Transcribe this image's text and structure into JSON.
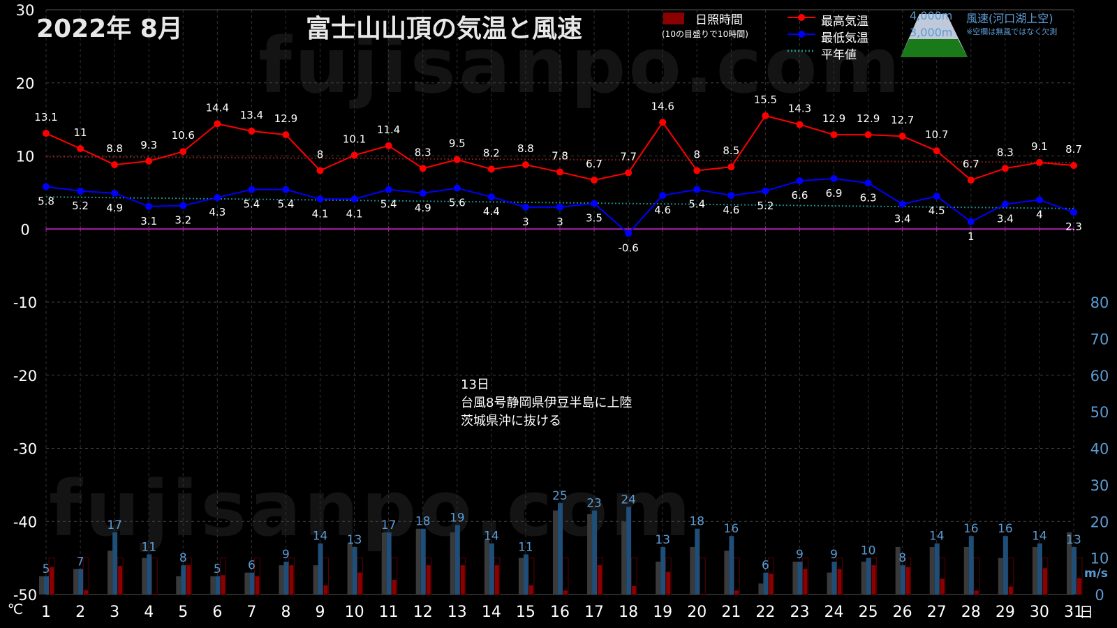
{
  "header": {
    "month_title": "2022年  8月",
    "main_title": "富士山山頂の気温と風速",
    "watermark": "fujisanpo.com"
  },
  "legend": {
    "sunshine_label": "日照時間",
    "sunshine_note": "(10の目盛りで10時間)",
    "max_label": "最高気温",
    "min_label": "最低気温",
    "normal_label": "平年値",
    "wind_4000": "4,000m",
    "wind_3000": "3,000m",
    "wind_label": "風速(河口湖上空)",
    "wind_note": "※空欄は無風ではなく欠測"
  },
  "annotation": {
    "line1": "13日",
    "line2": "台風8号静岡県伊豆半島に上陸",
    "line3": "茨城県沖に抜ける"
  },
  "colors": {
    "max": "#ff0000",
    "min": "#0000ff",
    "normal": "#1a8a8a",
    "zero_line": "#aa22aa",
    "sunshine": "#8b0000",
    "wind_4000": "#1f4e79",
    "wind_3000": "#3a3a3a",
    "wind_axis": "#5b9bd5"
  },
  "chart_data": {
    "type": "line",
    "days": [
      "1",
      "2",
      "3",
      "4",
      "5",
      "6",
      "7",
      "8",
      "9",
      "10",
      "11",
      "12",
      "13",
      "14",
      "15",
      "16",
      "17",
      "18",
      "19",
      "20",
      "21",
      "22",
      "23",
      "24",
      "25",
      "26",
      "27",
      "28",
      "29",
      "30",
      "31"
    ],
    "x_suffix": "日",
    "y_unit": "℃",
    "y2_unit": "m/s",
    "ylim": [
      -50,
      30
    ],
    "y_ticks": [
      -50,
      -40,
      -30,
      -20,
      -10,
      0,
      10,
      20,
      30
    ],
    "y2_ticks": [
      0,
      10,
      20,
      30,
      40,
      50,
      60,
      70,
      80
    ],
    "series": [
      {
        "name": "最高気温",
        "values": [
          13.1,
          11,
          8.8,
          9.3,
          10.6,
          14.4,
          13.4,
          12.9,
          8,
          10.1,
          11.4,
          8.3,
          9.5,
          8.2,
          8.8,
          7.8,
          6.7,
          7.7,
          14.6,
          8,
          8.5,
          15.5,
          14.3,
          12.9,
          12.9,
          12.7,
          10.7,
          6.7,
          8.3,
          9.1,
          8.7
        ]
      },
      {
        "name": "最低気温",
        "values": [
          5.8,
          5.2,
          4.9,
          3.1,
          3.2,
          4.3,
          5.4,
          5.4,
          4.1,
          4.1,
          5.4,
          4.9,
          5.6,
          4.4,
          3,
          3,
          3.5,
          -0.6,
          4.6,
          5.4,
          4.6,
          5.2,
          6.6,
          6.9,
          6.3,
          3.4,
          4.5,
          1,
          3.4,
          4,
          2.3
        ]
      }
    ],
    "normal_max": [
      9.9,
      9.1
    ],
    "normal_min": [
      4.4,
      2.8
    ],
    "wind_4000": [
      5,
      7,
      17,
      11,
      8,
      5,
      6,
      9,
      14,
      13,
      17,
      18,
      19,
      14,
      11,
      25,
      23,
      24,
      13,
      18,
      16,
      6,
      9,
      9,
      10,
      8,
      14,
      16,
      16,
      14,
      13
    ],
    "wind_3000": [
      5,
      7,
      12,
      10,
      5,
      5,
      6,
      8,
      8,
      14,
      17,
      18,
      17,
      15,
      10,
      23,
      22,
      20,
      9,
      13,
      12,
      3,
      9,
      6,
      9,
      13,
      13,
      13,
      10,
      13,
      17
    ],
    "sunshine_hours": [
      7.5,
      1.2,
      7.8,
      0.2,
      8,
      5.3,
      5,
      8,
      2.5,
      6,
      4,
      8,
      8,
      8,
      2.5,
      1.1,
      8,
      2.3,
      6.2,
      0.2,
      1.1,
      5.7,
      7,
      7,
      8,
      7.5,
      4.3,
      1.1,
      2.2,
      7.2,
      4.5
    ]
  }
}
